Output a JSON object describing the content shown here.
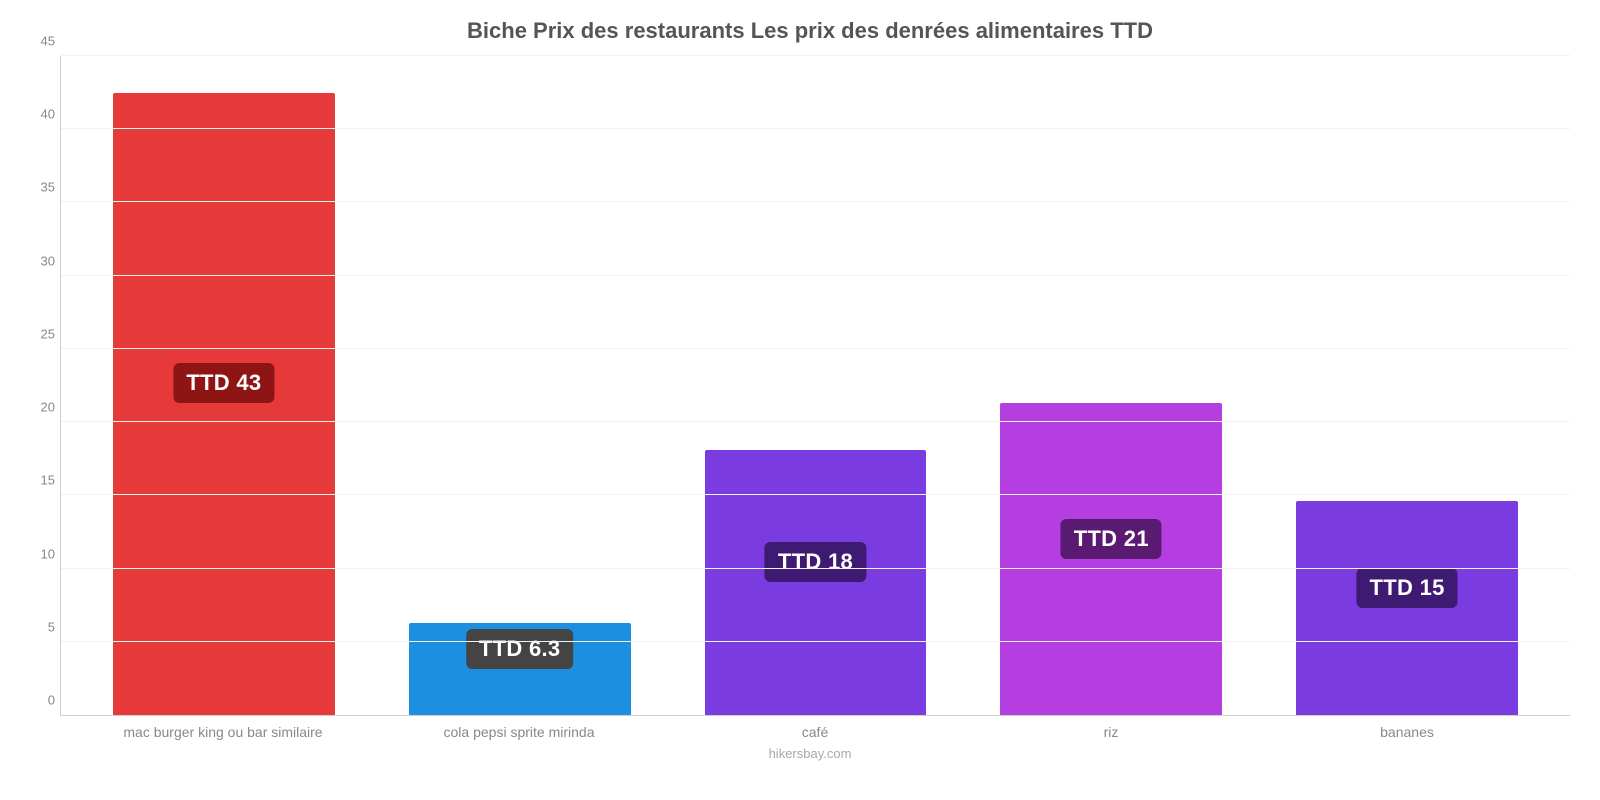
{
  "chart": {
    "type": "bar",
    "title": "Biche Prix des restaurants Les prix des denrées alimentaires TTD",
    "title_fontsize": 22,
    "title_color": "#555555",
    "background_color": "#ffffff",
    "grid_color": "#f2f2f2",
    "axis_color": "#cfcfcf",
    "tick_label_color": "#888888",
    "tick_label_fontsize": 13,
    "xlabel_fontsize": 14,
    "ylim": [
      0,
      45
    ],
    "ytick_step": 5,
    "yticks": [
      0,
      5,
      10,
      15,
      20,
      25,
      30,
      35,
      40,
      45
    ],
    "bar_width_pct": 75,
    "value_label_fontsize": 22,
    "categories": [
      "mac burger king ou bar similaire",
      "cola pepsi sprite mirinda",
      "café",
      "riz",
      "bananes"
    ],
    "values": [
      42.5,
      6.3,
      18.1,
      21.3,
      14.6
    ],
    "bar_colors": [
      "#e63939",
      "#1d8fe0",
      "#7a3be0",
      "#b53ee0",
      "#7a3be0"
    ],
    "value_labels": [
      "TTD 43",
      "TTD 6.3",
      "TTD 18",
      "TTD 21",
      "TTD 15"
    ],
    "badge_bg_colors": [
      "#8f1414",
      "#444444",
      "#3f1a72",
      "#5a1a72",
      "#3f1a72"
    ],
    "credit": "hikersbay.com",
    "credit_color": "#a8a8a8"
  }
}
